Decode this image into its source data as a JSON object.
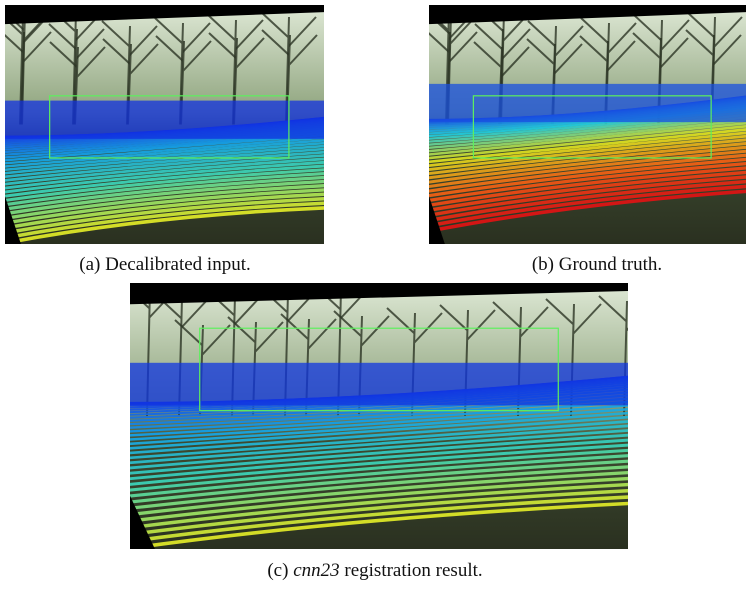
{
  "figures": [
    {
      "label": "(a)",
      "caption": "Decalibrated input."
    },
    {
      "label": "(b)",
      "caption": "Ground truth."
    },
    {
      "label": "(c)",
      "caption_italic": "cnn23",
      "caption": "registration result."
    }
  ]
}
